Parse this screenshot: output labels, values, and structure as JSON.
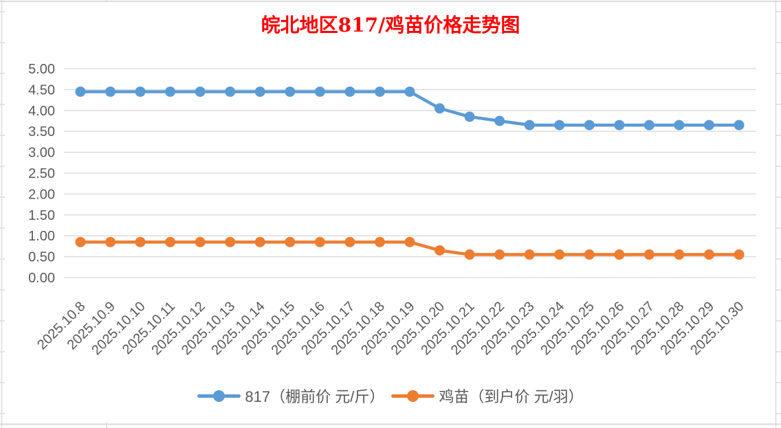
{
  "chart_data": {
    "type": "line",
    "title": "皖北地区817/鸡苗价格走势图",
    "title_color": "#FF0000",
    "categories": [
      "2025.10.8",
      "2025.10.9",
      "2025.10.10",
      "2025.10.11",
      "2025.10.12",
      "2025.10.13",
      "2025.10.14",
      "2025.10.15",
      "2025.10.16",
      "2025.10.17",
      "2025.10.18",
      "2025.10.19",
      "2025.10.20",
      "2025.10.21",
      "2025.10.22",
      "2025.10.23",
      "2025.10.24",
      "2025.10.25",
      "2025.10.26",
      "2025.10.27",
      "2025.10.28",
      "2025.10.29",
      "2025.10.30"
    ],
    "series": [
      {
        "key": "817",
        "name": "817（棚前价 元/斤）",
        "color": "#5B9BD5",
        "values": [
          4.45,
          4.45,
          4.45,
          4.45,
          4.45,
          4.45,
          4.45,
          4.45,
          4.45,
          4.45,
          4.45,
          4.45,
          4.05,
          3.85,
          3.75,
          3.65,
          3.65,
          3.65,
          3.65,
          3.65,
          3.65,
          3.65,
          3.65
        ]
      },
      {
        "key": "jimiao",
        "name": "鸡苗（到户价 元/羽）",
        "color": "#ED7D31",
        "values": [
          0.85,
          0.85,
          0.85,
          0.85,
          0.85,
          0.85,
          0.85,
          0.85,
          0.85,
          0.85,
          0.85,
          0.85,
          0.65,
          0.55,
          0.55,
          0.55,
          0.55,
          0.55,
          0.55,
          0.55,
          0.55,
          0.55,
          0.55
        ]
      }
    ],
    "xlabel": "",
    "ylabel": "",
    "ylim": [
      0,
      5
    ],
    "ytick_step": 0.5,
    "ytick_format": "0.00",
    "grid": true,
    "gridline_color": "#D9D9D9",
    "axis_label_color": "#595959",
    "legend_position": "bottom",
    "background_color": "#FFFFFF",
    "spreadsheet_edge_line_color": "#DADADA"
  }
}
